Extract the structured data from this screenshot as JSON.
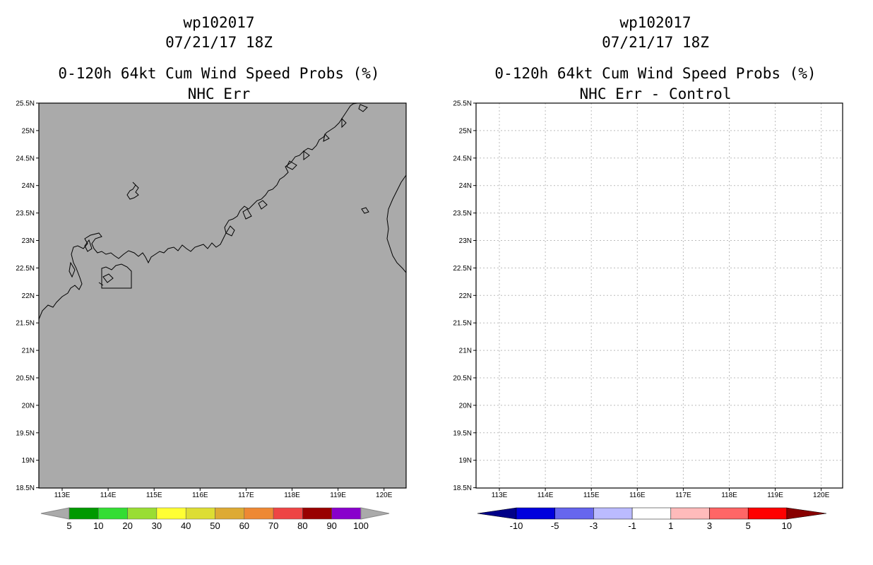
{
  "left_panel": {
    "storm_id": "wp102017",
    "datetime": "07/21/17 18Z",
    "product": "0-120h 64kt Cum Wind Speed Probs (%)",
    "subtitle": "NHC Err",
    "map_fill": "#aaaaaa",
    "colorbar": {
      "labels": [
        "5",
        "10",
        "20",
        "30",
        "40",
        "50",
        "60",
        "70",
        "80",
        "90",
        "100"
      ],
      "colors": [
        "#009900",
        "#33dd33",
        "#99dd33",
        "#ffff33",
        "#dddd33",
        "#ddaa33",
        "#ee8833",
        "#ee4444",
        "#990000",
        "#8800cc"
      ],
      "end_color": "#aaaaaa"
    }
  },
  "right_panel": {
    "storm_id": "wp102017",
    "datetime": "07/21/17 18Z",
    "product": "0-120h 64kt Cum Wind Speed Probs (%)",
    "subtitle": "NHC Err - Control",
    "map_fill": "#ffffff",
    "colorbar": {
      "labels": [
        "-10",
        "-5",
        "-3",
        "-1",
        "1",
        "3",
        "5",
        "10"
      ],
      "colors": [
        "#0000dd",
        "#6666ee",
        "#bbbbff",
        "#ffffff",
        "#ffbbbb",
        "#ff6666",
        "#ff0000"
      ],
      "left_end_color": "#000088",
      "right_end_color": "#880000"
    }
  },
  "axes": {
    "lat_labels": [
      "25.5N",
      "25N",
      "24.5N",
      "24N",
      "23.5N",
      "23N",
      "22.5N",
      "22N",
      "21.5N",
      "21N",
      "20.5N",
      "20N",
      "19.5N",
      "19N",
      "18.5N"
    ],
    "lon_labels": [
      "113E",
      "114E",
      "115E",
      "116E",
      "117E",
      "118E",
      "119E",
      "120E"
    ]
  }
}
